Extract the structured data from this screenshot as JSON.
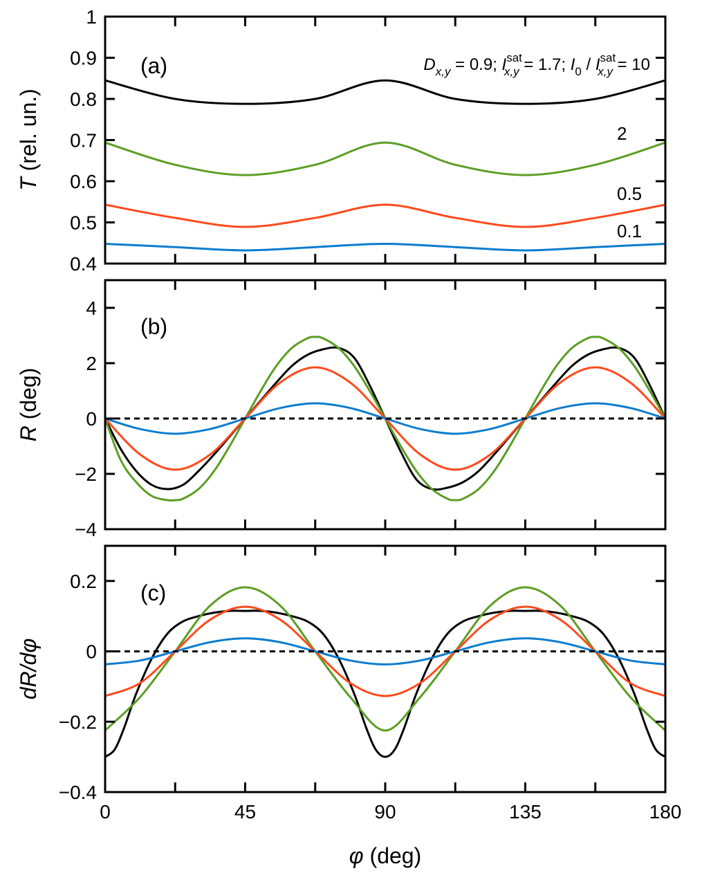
{
  "chart_data": [
    {
      "type": "line",
      "panel_label": "(a)",
      "ylabel_italic": "T",
      "ylabel_rest": " (rel. un.)",
      "ylim": [
        0.4,
        1.0
      ],
      "yticks": [
        0.4,
        0.5,
        0.6,
        0.7,
        0.8,
        0.9,
        1
      ],
      "ytick_labels": [
        "0.4",
        "0.5",
        "0.6",
        "0.7",
        "0.8",
        "0.9",
        "1"
      ],
      "xlim": [
        0,
        180
      ],
      "annotation": {
        "d": "D",
        "d_sub": "x,y",
        "part1": " = 0.9; ",
        "i": "I",
        "i_sub": "x,y",
        "i_sup": "sat",
        "part2": " = 1.7; ",
        "i0": "I",
        "i0_sub": "0",
        "slash": " / ",
        "i2": "I",
        "i2_sub": "x,y",
        "i2_sup": "sat",
        "part3": " = 10"
      },
      "series": [
        {
          "name": "",
          "color": "#000000",
          "x": [
            0,
            22.5,
            45,
            67.5,
            90,
            112.5,
            135,
            157.5,
            180
          ],
          "y": [
            0.845,
            0.8,
            0.788,
            0.8,
            0.845,
            0.8,
            0.788,
            0.8,
            0.845
          ]
        },
        {
          "name": "2",
          "color": "#5b9e22",
          "x": [
            0,
            22.5,
            45,
            67.5,
            90,
            112.5,
            135,
            157.5,
            180
          ],
          "y": [
            0.694,
            0.64,
            0.615,
            0.64,
            0.694,
            0.64,
            0.615,
            0.64,
            0.694
          ]
        },
        {
          "name": "0.5",
          "color": "#ff4a1c",
          "x": [
            0,
            22.5,
            45,
            67.5,
            90,
            112.5,
            135,
            157.5,
            180
          ],
          "y": [
            0.543,
            0.511,
            0.489,
            0.511,
            0.543,
            0.511,
            0.489,
            0.511,
            0.543
          ]
        },
        {
          "name": "0.1",
          "color": "#0a7ccf",
          "x": [
            0,
            22.5,
            45,
            67.5,
            90,
            112.5,
            135,
            157.5,
            180
          ],
          "y": [
            0.448,
            0.44,
            0.432,
            0.44,
            0.448,
            0.44,
            0.432,
            0.44,
            0.448
          ]
        }
      ]
    },
    {
      "type": "line",
      "panel_label": "(b)",
      "ylabel_italic": "R",
      "ylabel_rest": " (deg)",
      "ylim": [
        -4,
        5
      ],
      "yticks": [
        -4,
        -2,
        0,
        2,
        4
      ],
      "ytick_labels": [
        "−4",
        "−2",
        "0",
        "2",
        "4"
      ],
      "xlim": [
        0,
        180
      ],
      "zero_line": true,
      "series": [
        {
          "name": "",
          "color": "#000000",
          "x": [
            0,
            5,
            10,
            15,
            20,
            25,
            30,
            35,
            40,
            45,
            50,
            55,
            60,
            65,
            70,
            75,
            80,
            85,
            90,
            95,
            100,
            105,
            110,
            115,
            120,
            125,
            130,
            135,
            140,
            145,
            150,
            155,
            160,
            165,
            170,
            175,
            180
          ],
          "y": [
            0,
            -1.1,
            -1.9,
            -2.4,
            -2.55,
            -2.4,
            -1.9,
            -1.3,
            -0.65,
            0,
            0.65,
            1.3,
            1.9,
            2.3,
            2.5,
            2.55,
            2.2,
            1.2,
            0,
            -1.2,
            -2.2,
            -2.55,
            -2.5,
            -2.3,
            -1.9,
            -1.3,
            -0.65,
            0,
            0.65,
            1.3,
            1.9,
            2.3,
            2.5,
            2.55,
            2.2,
            1.2,
            0
          ]
        },
        {
          "name": "",
          "color": "#5b9e22",
          "x": [
            0,
            5,
            10,
            15,
            20,
            22.5,
            25,
            30,
            35,
            40,
            45,
            50,
            55,
            60,
            65,
            67.5,
            70,
            75,
            80,
            85,
            90,
            95,
            100,
            105,
            110,
            112.5,
            115,
            120,
            125,
            130,
            135,
            140,
            145,
            150,
            155,
            157.5,
            160,
            165,
            170,
            175,
            180
          ],
          "y": [
            0,
            -1.5,
            -2.3,
            -2.8,
            -2.95,
            -2.95,
            -2.9,
            -2.55,
            -1.9,
            -1.0,
            0,
            1.0,
            1.9,
            2.55,
            2.9,
            2.95,
            2.9,
            2.55,
            1.9,
            1.0,
            0,
            -1.0,
            -1.9,
            -2.55,
            -2.9,
            -2.95,
            -2.9,
            -2.55,
            -1.9,
            -1.0,
            0,
            1.0,
            1.9,
            2.55,
            2.9,
            2.95,
            2.9,
            2.55,
            1.9,
            1.0,
            0
          ]
        },
        {
          "name": "",
          "color": "#ff4a1c",
          "x": [
            0,
            11.25,
            22.5,
            33.75,
            45,
            56.25,
            67.5,
            78.75,
            90,
            101.25,
            112.5,
            123.75,
            135,
            146.25,
            157.5,
            168.75,
            180
          ],
          "y": [
            0,
            -1.3,
            -1.85,
            -1.3,
            0,
            1.3,
            1.85,
            1.3,
            0,
            -1.3,
            -1.85,
            -1.3,
            0,
            1.3,
            1.85,
            1.3,
            0
          ]
        },
        {
          "name": "",
          "color": "#0a7ccf",
          "x": [
            0,
            11.25,
            22.5,
            33.75,
            45,
            56.25,
            67.5,
            78.75,
            90,
            101.25,
            112.5,
            123.75,
            135,
            146.25,
            157.5,
            168.75,
            180
          ],
          "y": [
            0,
            -0.38,
            -0.55,
            -0.38,
            0,
            0.38,
            0.55,
            0.38,
            0,
            -0.38,
            -0.55,
            -0.38,
            0,
            0.38,
            0.55,
            0.38,
            0
          ]
        }
      ]
    },
    {
      "type": "line",
      "panel_label": "(c)",
      "ylabel_italic": "dR/dφ",
      "ylabel_rest": "",
      "ylim": [
        -0.4,
        0.3
      ],
      "yticks": [
        -0.4,
        -0.2,
        0,
        0.2
      ],
      "ytick_labels": [
        "−0.4",
        "−0.2",
        "0",
        "0.2"
      ],
      "xlim": [
        0,
        180
      ],
      "xticks": [
        0,
        45,
        90,
        135,
        180
      ],
      "xtick_labels": [
        "0",
        "45",
        "90",
        "135",
        "180"
      ],
      "xlabel_italic": "φ",
      "xlabel_rest": " (deg)",
      "zero_line": true,
      "series": [
        {
          "name": "",
          "color": "#000000",
          "x": [
            0,
            3,
            6,
            10,
            15,
            20,
            25,
            30,
            35,
            40,
            45,
            50,
            55,
            60,
            65,
            70,
            75,
            80,
            84,
            87,
            90,
            93,
            96,
            100,
            105,
            110,
            115,
            120,
            125,
            130,
            135,
            140,
            145,
            150,
            155,
            160,
            165,
            170,
            174,
            177,
            180
          ],
          "y": [
            -0.3,
            -0.28,
            -0.22,
            -0.12,
            -0.02,
            0.05,
            0.085,
            0.1,
            0.11,
            0.115,
            0.115,
            0.115,
            0.11,
            0.1,
            0.085,
            0.05,
            -0.02,
            -0.12,
            -0.22,
            -0.28,
            -0.3,
            -0.28,
            -0.22,
            -0.12,
            -0.02,
            0.05,
            0.085,
            0.1,
            0.11,
            0.115,
            0.115,
            0.115,
            0.11,
            0.1,
            0.085,
            0.05,
            -0.02,
            -0.12,
            -0.22,
            -0.28,
            -0.3
          ]
        },
        {
          "name": "",
          "color": "#5b9e22",
          "x": [
            0,
            11.25,
            22.5,
            33.75,
            45,
            56.25,
            67.5,
            78.75,
            90,
            101.25,
            112.5,
            123.75,
            135,
            146.25,
            157.5,
            168.75,
            180
          ],
          "y": [
            -0.225,
            -0.13,
            0.0,
            0.13,
            0.182,
            0.13,
            0.0,
            -0.13,
            -0.225,
            -0.13,
            0.0,
            0.13,
            0.182,
            0.13,
            0.0,
            -0.13,
            -0.225
          ]
        },
        {
          "name": "",
          "color": "#ff4a1c",
          "x": [
            0,
            11.25,
            22.5,
            33.75,
            45,
            56.25,
            67.5,
            78.75,
            90,
            101.25,
            112.5,
            123.75,
            135,
            146.25,
            157.5,
            168.75,
            180
          ],
          "y": [
            -0.127,
            -0.09,
            0.0,
            0.09,
            0.127,
            0.09,
            0.0,
            -0.09,
            -0.127,
            -0.09,
            0.0,
            0.09,
            0.127,
            0.09,
            0.0,
            -0.09,
            -0.127
          ]
        },
        {
          "name": "",
          "color": "#0a7ccf",
          "x": [
            0,
            11.25,
            22.5,
            33.75,
            45,
            56.25,
            67.5,
            78.75,
            90,
            101.25,
            112.5,
            123.75,
            135,
            146.25,
            157.5,
            168.75,
            180
          ],
          "y": [
            -0.037,
            -0.026,
            0.0,
            0.026,
            0.037,
            0.026,
            0.0,
            -0.026,
            -0.037,
            -0.026,
            0.0,
            0.026,
            0.037,
            0.026,
            0.0,
            -0.026,
            -0.037
          ]
        }
      ]
    }
  ]
}
